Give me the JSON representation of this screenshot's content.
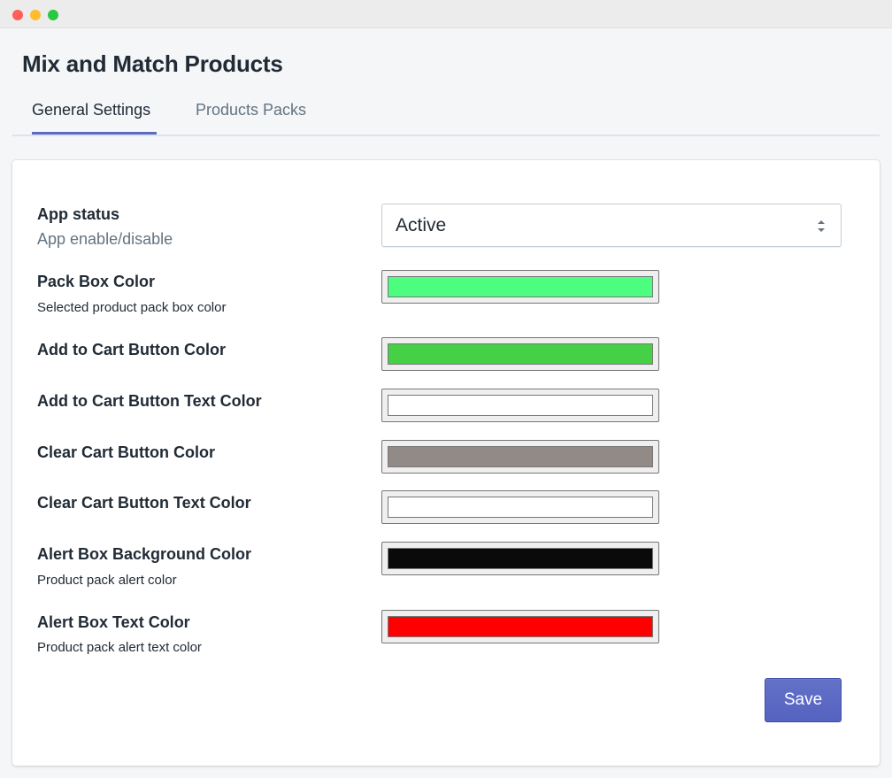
{
  "window": {
    "controls": [
      "close-light",
      "minimize-light",
      "zoom-light"
    ]
  },
  "page": {
    "title": "Mix and Match Products"
  },
  "tabs": [
    {
      "label": "General Settings",
      "active": true
    },
    {
      "label": "Products Packs",
      "active": false
    }
  ],
  "settings": {
    "app_status": {
      "label": "App status",
      "help": "App enable/disable",
      "value": "Active"
    },
    "pack_box_color": {
      "label": "Pack Box Color",
      "help": "Selected product pack box color",
      "color": "#4cfd80"
    },
    "add_to_cart_color": {
      "label": "Add to Cart Button Color",
      "color": "#45d045"
    },
    "add_to_cart_text_color": {
      "label": "Add to Cart Button Text Color",
      "color": "#ffffff"
    },
    "clear_cart_color": {
      "label": "Clear Cart Button Color",
      "color": "#918a87"
    },
    "clear_cart_text_color": {
      "label": "Clear Cart Button Text Color",
      "color": "#ffffff"
    },
    "alert_bg_color": {
      "label": "Alert Box Background Color",
      "help": "Product pack alert color",
      "color": "#0a0a0a"
    },
    "alert_text_color": {
      "label": "Alert Box Text Color",
      "help": "Product pack alert text color",
      "color": "#ff0000"
    }
  },
  "actions": {
    "save_label": "Save"
  },
  "colors": {
    "accent": "#5c6ac4",
    "background": "#f4f6f8"
  }
}
